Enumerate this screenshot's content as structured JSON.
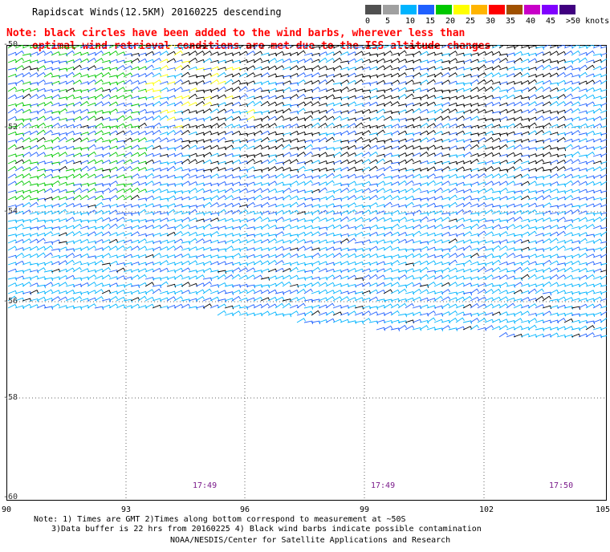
{
  "header": {
    "title": "Rapidscat Winds(12.5KM) 20160225 descending"
  },
  "legend": {
    "labels": [
      "0",
      "5",
      "10",
      "15",
      "20",
      "25",
      "30",
      "35",
      "40",
      "45",
      ">50 knots"
    ],
    "colors": [
      "#505050",
      "#a0a0a0",
      "#00b4ff",
      "#2060ff",
      "#00c800",
      "#ffff00",
      "#ffb400",
      "#ff0000",
      "#a05000",
      "#c800c8",
      "#8000ff",
      "#400080"
    ]
  },
  "note": {
    "line1": "Note: black circles have been added to the wind barbs, wherever less than",
    "line2": "optimal wind retrieval conditions are met due to the ISS altitude changes"
  },
  "map": {
    "lat_labels": [
      "-50",
      "-52",
      "-54",
      "-56",
      "-58",
      "-60"
    ],
    "lon_labels": [
      "90",
      "93",
      "96",
      "99",
      "102",
      "105"
    ],
    "times": [
      "17:49",
      "17:49",
      "17:50"
    ]
  },
  "footer": {
    "line1": "Note: 1) Times are GMT 2)Times along bottom correspond to measurement at ~50S",
    "line2": "3)Data buffer is 22 hrs from 20160225 4) Black wind barbs indicate possible contamination",
    "line3": "NOAA/NESDIS/Center for Satellite Applications and Research"
  }
}
